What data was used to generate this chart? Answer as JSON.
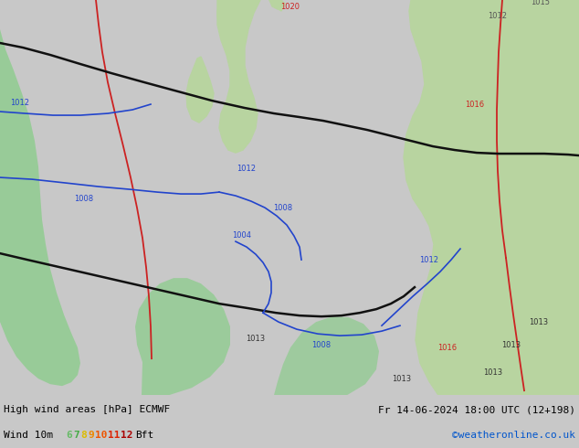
{
  "title_left": "High wind areas [hPa] ECMWF",
  "title_right": "Fr 14-06-2024 18:00 UTC (12+198)",
  "subtitle_left": "Wind 10m",
  "bft_values": [
    "6",
    "7",
    "8",
    "9",
    "10",
    "11",
    "12"
  ],
  "bft_colors": [
    "#66bb66",
    "#44aa44",
    "#ddbb00",
    "#ee8800",
    "#ee5500",
    "#dd2200",
    "#aa0000"
  ],
  "copyright": "©weatheronline.co.uk",
  "copyright_color": "#0055cc",
  "sea_color": "#dce8ec",
  "land_color": "#b8d4a0",
  "wind_green_color": "#90cc90",
  "red_isobar": "#cc2222",
  "blue_isobar": "#2244cc",
  "black_isobar": "#111111",
  "bottom_bg": "#c8c8c8",
  "map_bg": "#e0e4e4"
}
